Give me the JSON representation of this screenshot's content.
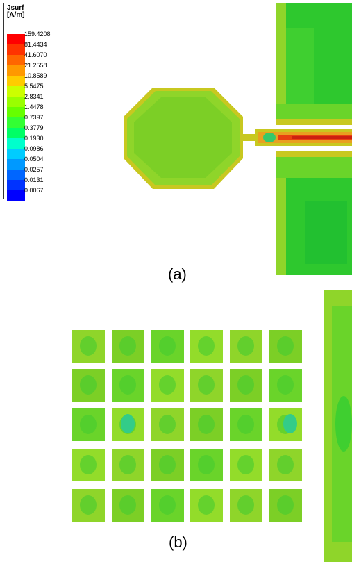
{
  "legend": {
    "title_line1": "Jsurf",
    "title_line2": "[A/m]",
    "values": [
      "159.4208",
      "81.4434",
      "41.6070",
      "21.2558",
      "10.8589",
      "5.5475",
      "2.8341",
      "1.4478",
      "0.7397",
      "0.3779",
      "0.1930",
      "0.0986",
      "0.0504",
      "0.0257",
      "0.0131",
      "0.0067"
    ],
    "colors": [
      "#ff0000",
      "#ff3300",
      "#ff6600",
      "#ff9900",
      "#ffcc00",
      "#ccff00",
      "#99ff00",
      "#66ff00",
      "#33ff33",
      "#00ff66",
      "#00ffcc",
      "#00ccff",
      "#0099ff",
      "#0066ff",
      "#0033ff",
      "#0000ff"
    ]
  },
  "captions": {
    "a": "(a)",
    "b": "(b)"
  },
  "colors": {
    "field_green": "#6ecf1e",
    "field_light": "#93dc2a",
    "field_dark": "#2ec82e",
    "hot": "#e8a020",
    "red": "#e83010"
  }
}
